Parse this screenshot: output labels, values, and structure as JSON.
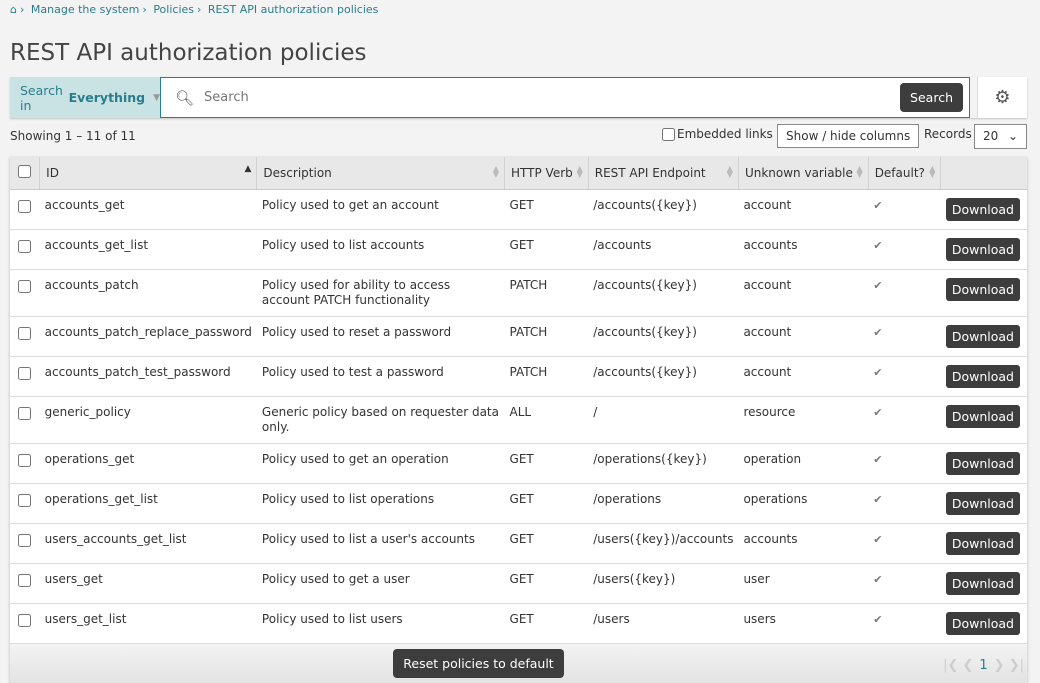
{
  "breadcrumb": [
    "Manage the system",
    "Policies",
    "REST API authorization policies"
  ],
  "title": "REST API authorization policies",
  "search": {
    "scope_prefix": "Search in",
    "scope_value": "Everything",
    "placeholder": "Search",
    "button": "Search"
  },
  "toolbar": {
    "showing": "Showing 1 – 11 of 11",
    "embedded_links": "Embedded links",
    "show_hide": "Show / hide columns",
    "records_label": "Records",
    "records_value": "20"
  },
  "columns": [
    "ID",
    "Description",
    "HTTP Verb",
    "REST API Endpoint",
    "Unknown variable",
    "Default?"
  ],
  "rows": [
    {
      "id": "accounts_get",
      "desc": "Policy used to get an account",
      "verb": "GET",
      "endpoint": "/accounts({key})",
      "var": "account"
    },
    {
      "id": "accounts_get_list",
      "desc": "Policy used to list accounts",
      "verb": "GET",
      "endpoint": "/accounts",
      "var": "accounts"
    },
    {
      "id": "accounts_patch",
      "desc": "Policy used for ability to access account PATCH functionality",
      "verb": "PATCH",
      "endpoint": "/accounts({key})",
      "var": "account"
    },
    {
      "id": "accounts_patch_replace_password",
      "desc": "Policy used to reset a password",
      "verb": "PATCH",
      "endpoint": "/accounts({key})",
      "var": "account"
    },
    {
      "id": "accounts_patch_test_password",
      "desc": "Policy used to test a password",
      "verb": "PATCH",
      "endpoint": "/accounts({key})",
      "var": "account"
    },
    {
      "id": "generic_policy",
      "desc": "Generic policy based on requester data only.",
      "verb": "ALL",
      "endpoint": "/",
      "var": "resource"
    },
    {
      "id": "operations_get",
      "desc": "Policy used to get an operation",
      "verb": "GET",
      "endpoint": "/operations({key})",
      "var": "operation"
    },
    {
      "id": "operations_get_list",
      "desc": "Policy used to list operations",
      "verb": "GET",
      "endpoint": "/operations",
      "var": "operations"
    },
    {
      "id": "users_accounts_get_list",
      "desc": "Policy used to list a user's accounts",
      "verb": "GET",
      "endpoint": "/users({key})/accounts",
      "var": "accounts"
    },
    {
      "id": "users_get",
      "desc": "Policy used to get a user",
      "verb": "GET",
      "endpoint": "/users({key})",
      "var": "user"
    },
    {
      "id": "users_get_list",
      "desc": "Policy used to list users",
      "verb": "GET",
      "endpoint": "/users",
      "var": "users"
    }
  ],
  "download_label": "Download",
  "default_mark": "✔",
  "reset_label": "Reset policies to default",
  "pager": {
    "current": "1"
  }
}
